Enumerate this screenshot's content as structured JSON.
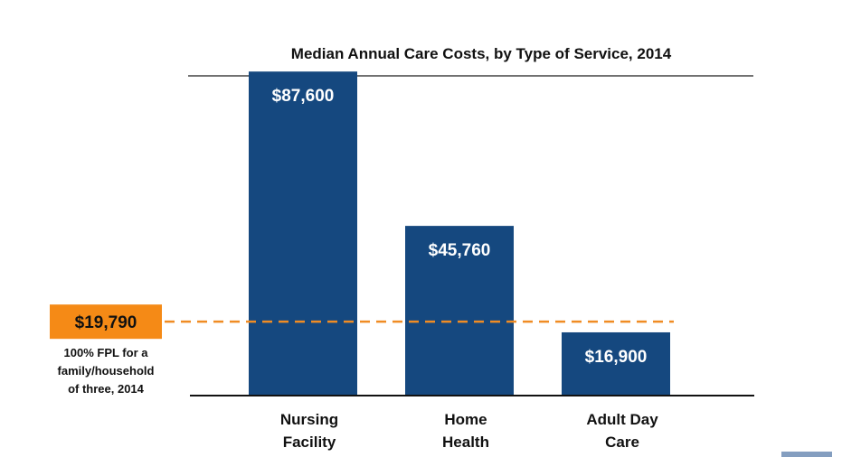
{
  "chart_data": {
    "type": "bar",
    "title": "Median Annual Care Costs, by Type of Service, 2014",
    "categories": [
      [
        "Nursing",
        "Facility"
      ],
      [
        "Home",
        "Health"
      ],
      [
        "Adult Day",
        "Care"
      ]
    ],
    "values": [
      87600,
      45760,
      16900
    ],
    "value_labels": [
      "$87,600",
      "$45,760",
      "$16,900"
    ],
    "ylim": [
      0,
      95000
    ],
    "bar_color": "#15487f",
    "reference_line": {
      "value": 19790,
      "label": "$19,790",
      "caption": [
        "100% FPL for a",
        "family/household",
        "of three, 2014"
      ],
      "line_color": "#f08c24",
      "badge_color": "#f58a16"
    },
    "grid": false,
    "legend": "none"
  }
}
